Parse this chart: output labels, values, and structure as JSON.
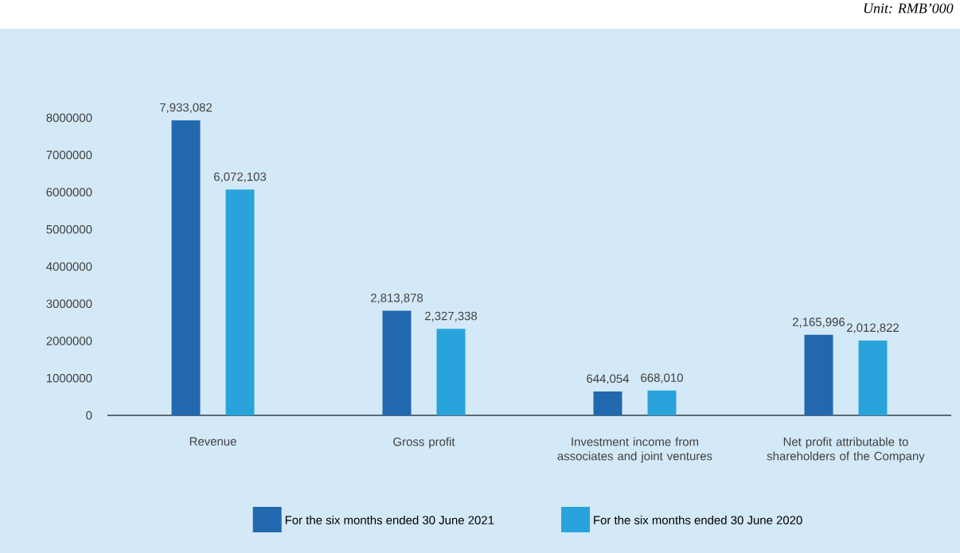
{
  "chart_data": {
    "type": "bar",
    "annotations": [
      "Unit: RMB’000"
    ],
    "categories": [
      "Revenue",
      "Gross profit",
      "Investment income from associates and joint ventures",
      "Net profit attributable to shareholders of the Company"
    ],
    "series": [
      {
        "name": "For the six months ended 30 June 2021",
        "color": "#2268ae",
        "values": [
          7933082,
          2813878,
          644054,
          2165996
        ],
        "value_labels": [
          "7,933,082",
          "2,813,878",
          "644,054",
          "2,165,996"
        ]
      },
      {
        "name": "For the six months ended 30 June 2020",
        "color": "#29a3dc",
        "values": [
          6072103,
          2327338,
          668010,
          2012822
        ],
        "value_labels": [
          "6,072,103",
          "2,327,338",
          "668,010",
          "2,012,822"
        ]
      }
    ],
    "ylim": [
      0,
      8000000
    ],
    "yticks": [
      0,
      1000000,
      2000000,
      3000000,
      4000000,
      5000000,
      6000000,
      7000000,
      8000000
    ],
    "legend": "bottom"
  }
}
